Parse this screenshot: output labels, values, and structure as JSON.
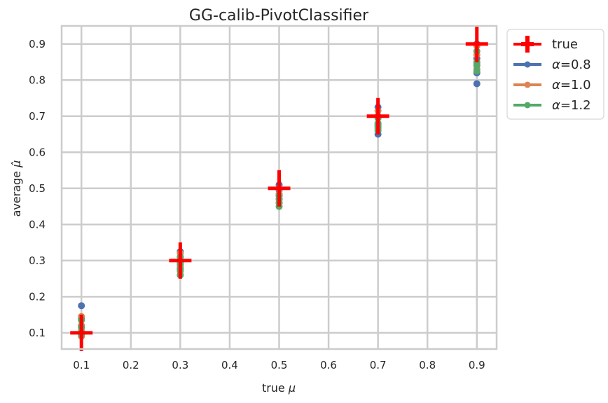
{
  "chart_data": {
    "type": "scatter",
    "title": "GG-calib-PivotClassifier",
    "xlabel_prefix": "true",
    "xlabel_symbol": "μ",
    "ylabel_prefix": "average",
    "ylabel_symbol": "μ̂",
    "xlim": [
      0.06,
      0.94
    ],
    "ylim": [
      0.055,
      0.95
    ],
    "x_ticks": [
      "0.1",
      "0.2",
      "0.3",
      "0.4",
      "0.5",
      "0.6",
      "0.7",
      "0.8",
      "0.9"
    ],
    "y_ticks": [
      "0.1",
      "0.2",
      "0.3",
      "0.4",
      "0.5",
      "0.6",
      "0.7",
      "0.8",
      "0.9"
    ],
    "grid": true,
    "legend_placement": "outside top-right",
    "legend_symbol": "α",
    "series": [
      {
        "name": "true",
        "color": "#ff0000",
        "marker": "plus",
        "x": [
          0.1,
          0.3,
          0.5,
          0.7,
          0.9
        ],
        "y": [
          0.1,
          0.3,
          0.5,
          0.7,
          0.9
        ]
      },
      {
        "name": "=0.8",
        "color": "#4c72b0",
        "marker": "circle",
        "x": [
          0.1,
          0.1,
          0.1,
          0.1,
          0.3,
          0.3,
          0.3,
          0.3,
          0.5,
          0.5,
          0.5,
          0.5,
          0.7,
          0.7,
          0.7,
          0.7,
          0.9,
          0.9,
          0.9,
          0.9
        ],
        "y": [
          0.175,
          0.14,
          0.12,
          0.1,
          0.325,
          0.31,
          0.295,
          0.28,
          0.51,
          0.495,
          0.48,
          0.47,
          0.725,
          0.7,
          0.675,
          0.65,
          0.9,
          0.86,
          0.82,
          0.79
        ]
      },
      {
        "name": "=1.0",
        "color": "#dd8452",
        "marker": "circle",
        "x": [
          0.1,
          0.1,
          0.1,
          0.1,
          0.3,
          0.3,
          0.3,
          0.3,
          0.5,
          0.5,
          0.5,
          0.5,
          0.7,
          0.7,
          0.7,
          0.7,
          0.9,
          0.9,
          0.9,
          0.9
        ],
        "y": [
          0.145,
          0.12,
          0.105,
          0.09,
          0.32,
          0.3,
          0.285,
          0.27,
          0.5,
          0.485,
          0.47,
          0.46,
          0.715,
          0.695,
          0.68,
          0.665,
          0.895,
          0.87,
          0.845,
          0.83
        ]
      },
      {
        "name": "=1.2",
        "color": "#55a868",
        "marker": "circle",
        "x": [
          0.1,
          0.1,
          0.1,
          0.1,
          0.3,
          0.3,
          0.3,
          0.3,
          0.5,
          0.5,
          0.5,
          0.5,
          0.7,
          0.7,
          0.7,
          0.7,
          0.9,
          0.9,
          0.9,
          0.9
        ],
        "y": [
          0.135,
          0.115,
          0.1,
          0.095,
          0.31,
          0.29,
          0.275,
          0.26,
          0.48,
          0.47,
          0.46,
          0.45,
          0.695,
          0.68,
          0.67,
          0.66,
          0.88,
          0.85,
          0.84,
          0.825
        ]
      }
    ]
  }
}
